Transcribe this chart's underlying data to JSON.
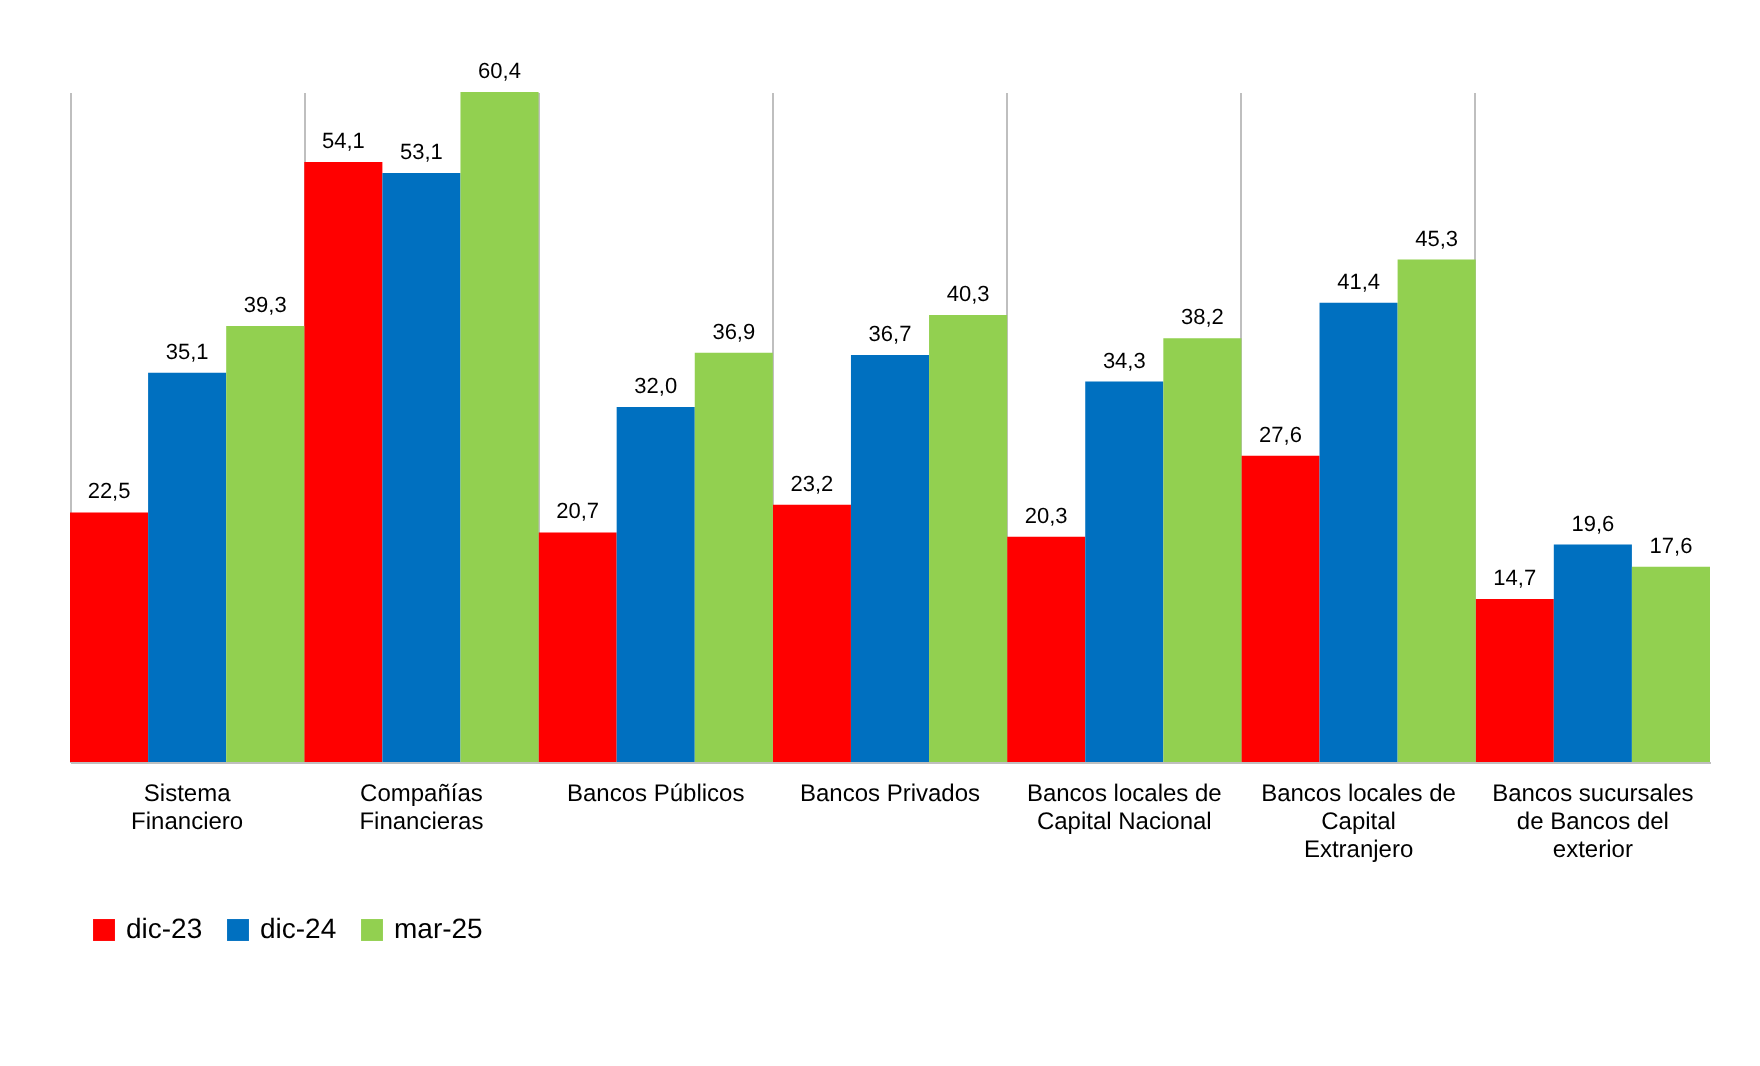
{
  "chart_data": {
    "type": "bar",
    "categories": [
      "Sistema Financiero",
      "Compañías Financieras",
      "Bancos Públicos",
      "Bancos Privados",
      "Bancos locales de Capital Nacional",
      "Bancos locales de Capital Extranjero",
      "Bancos sucursales de Bancos del exterior"
    ],
    "series": [
      {
        "name": "dic-23",
        "color": "#ff0000",
        "values": [
          22.5,
          54.1,
          20.7,
          23.2,
          20.3,
          27.6,
          14.7
        ],
        "value_labels": [
          "22,5",
          "54,1",
          "20,7",
          "23,2",
          "20,3",
          "27,6",
          "14,7"
        ]
      },
      {
        "name": "dic-24",
        "color": "#0070c0",
        "values": [
          35.1,
          53.1,
          32.0,
          36.7,
          34.3,
          41.4,
          19.6
        ],
        "value_labels": [
          "35,1",
          "53,1",
          "32,0",
          "36,7",
          "34,3",
          "41,4",
          "19,6"
        ]
      },
      {
        "name": "mar-25",
        "color": "#92d050",
        "values": [
          39.3,
          60.4,
          36.9,
          40.3,
          38.2,
          45.3,
          17.6
        ],
        "value_labels": [
          "39,3",
          "60,4",
          "36,9",
          "40,3",
          "38,2",
          "45,3",
          "17,6"
        ]
      }
    ],
    "grid": "x",
    "legend": "bottom"
  }
}
